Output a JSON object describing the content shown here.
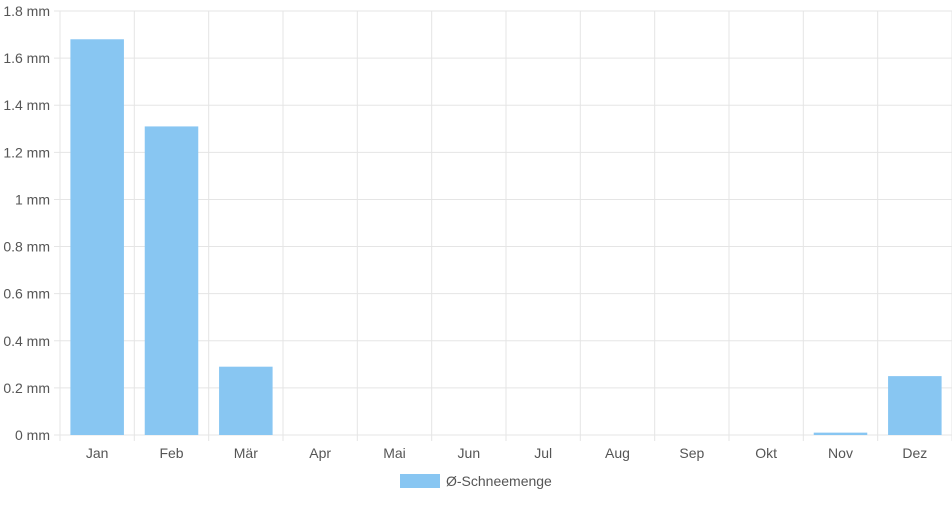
{
  "chart_data": {
    "type": "bar",
    "categories": [
      "Jan",
      "Feb",
      "Mär",
      "Apr",
      "Mai",
      "Jun",
      "Jul",
      "Aug",
      "Sep",
      "Okt",
      "Nov",
      "Dez"
    ],
    "series": [
      {
        "name": "Ø-Schneemenge",
        "values": [
          1.68,
          1.31,
          0.29,
          0,
          0,
          0,
          0,
          0,
          0,
          0,
          0.01,
          0.25
        ],
        "color": "#88c6f2"
      }
    ],
    "y_ticks": [
      "0 mm",
      "0.2 mm",
      "0.4 mm",
      "0.6 mm",
      "0.8 mm",
      "1 mm",
      "1.2 mm",
      "1.4 mm",
      "1.6 mm",
      "1.8 mm"
    ],
    "ylim": [
      0,
      1.8
    ],
    "y_unit": "mm",
    "grid": true,
    "legend_position": "bottom",
    "colors": {
      "bar": "#88c6f2",
      "grid": "#e5e5e5",
      "text": "#555555"
    }
  }
}
